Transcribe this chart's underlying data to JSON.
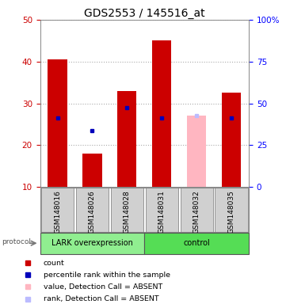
{
  "title": "GDS2553 / 145516_at",
  "samples": [
    "GSM148016",
    "GSM148026",
    "GSM148028",
    "GSM148031",
    "GSM148032",
    "GSM148035"
  ],
  "red_bar_heights": [
    40.5,
    18.0,
    33.0,
    45.0,
    0.0,
    32.5
  ],
  "pink_bar_heights": [
    0.0,
    0.0,
    0.0,
    0.0,
    27.0,
    0.0
  ],
  "blue_square_y": [
    26.5,
    23.5,
    29.0,
    26.5,
    0.0,
    26.5
  ],
  "lightblue_square_y": [
    0.0,
    0.0,
    0.0,
    0.0,
    27.0,
    0.0
  ],
  "has_absent": [
    false,
    false,
    false,
    false,
    true,
    false
  ],
  "left_ylim": [
    10,
    50
  ],
  "left_yticks": [
    10,
    20,
    30,
    40,
    50
  ],
  "right_ylim": [
    0,
    100
  ],
  "right_yticks": [
    0,
    25,
    50,
    75,
    100
  ],
  "right_yticklabels": [
    "0",
    "25",
    "50",
    "75",
    "100%"
  ],
  "groups": [
    {
      "label": "LARK overexpression",
      "n": 3,
      "color": "#90EE90"
    },
    {
      "label": "control",
      "n": 3,
      "color": "#55DD55"
    }
  ],
  "protocol_label": "protocol",
  "red_color": "#CC0000",
  "pink_color": "#FFB6C1",
  "blue_color": "#0000BB",
  "lightblue_color": "#BBBBFF",
  "bar_width": 0.55,
  "legend_items": [
    {
      "color": "#CC0000",
      "label": "count"
    },
    {
      "color": "#0000BB",
      "label": "percentile rank within the sample"
    },
    {
      "color": "#FFB6C1",
      "label": "value, Detection Call = ABSENT"
    },
    {
      "color": "#BBBBFF",
      "label": "rank, Detection Call = ABSENT"
    }
  ],
  "gridcolor": "#aaaaaa",
  "sample_label_fontsize": 6.5,
  "title_fontsize": 10,
  "legend_fontsize": 6.8,
  "protocol_fontsize": 7.0,
  "ytick_fontsize": 7.5,
  "sample_box_color": "#d0d0d0",
  "sample_box_edge": "#888888"
}
